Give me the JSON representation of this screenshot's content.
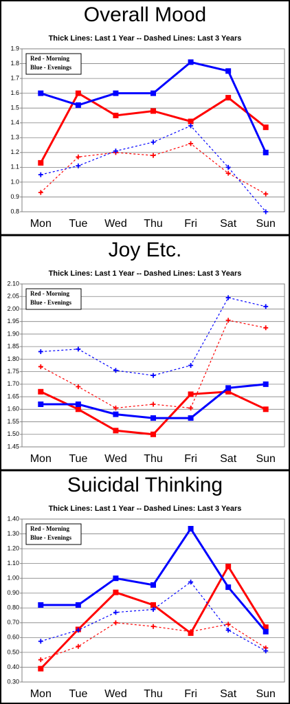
{
  "chart_data": [
    {
      "type": "line",
      "title": "Overall Mood",
      "subtitle": "Thick Lines: Last 1 Year -- Dashed Lines: Last 3 Years",
      "legend_text": [
        "Red - Morning",
        "Blue - Evenings"
      ],
      "categories": [
        "Mon",
        "Tue",
        "Wed",
        "Thu",
        "Fri",
        "Sat",
        "Sun"
      ],
      "ylim": [
        0.8,
        1.9
      ],
      "yticks": [
        0.8,
        0.9,
        {
          "value": 1,
          "label": "1.0"
        },
        1.1,
        1.2,
        1.3,
        1.4,
        1.5,
        1.6,
        1.7,
        1.8,
        1.9
      ],
      "grid": true,
      "series": [
        {
          "color": "#ff0000",
          "style": "solid",
          "values": [
            1.13,
            1.6,
            1.45,
            1.48,
            1.41,
            1.57,
            1.37
          ]
        },
        {
          "color": "#0000ff",
          "style": "solid",
          "values": [
            1.6,
            1.52,
            1.6,
            1.6,
            1.81,
            1.75,
            1.2
          ]
        },
        {
          "color": "#ff0000",
          "style": "dashed",
          "values": [
            0.93,
            1.17,
            1.2,
            1.18,
            1.26,
            1.06,
            0.92
          ]
        },
        {
          "color": "#0000ff",
          "style": "dashed",
          "values": [
            1.05,
            1.11,
            1.21,
            1.27,
            1.38,
            1.1,
            0.8
          ]
        }
      ]
    },
    {
      "type": "line",
      "title": "Joy Etc.",
      "subtitle": "Thick Lines: Last 1 Year -- Dashed Lines: Last 3 Years",
      "legend_text": [
        "Red - Morning",
        "Blue - Evenings"
      ],
      "categories": [
        "Mon",
        "Tue",
        "Wed",
        "Thu",
        "Fri",
        "Sat",
        "Sun"
      ],
      "ylim": [
        1.45,
        2.1
      ],
      "yticks": [
        1.45,
        {
          "value": 1.5,
          "label": "1.50"
        },
        1.55,
        {
          "value": 1.6,
          "label": "1.60"
        },
        1.65,
        {
          "value": 1.7,
          "label": "1.70"
        },
        1.75,
        {
          "value": 1.8,
          "label": "1.80"
        },
        1.85,
        {
          "value": 1.9,
          "label": "1.90"
        },
        1.95,
        {
          "value": 2,
          "label": "2.00"
        },
        2.05,
        {
          "value": 2.1,
          "label": "2.10"
        }
      ],
      "grid": true,
      "series": [
        {
          "color": "#ff0000",
          "style": "solid",
          "values": [
            1.67,
            1.6,
            1.515,
            1.5,
            1.66,
            1.67,
            1.6
          ]
        },
        {
          "color": "#0000ff",
          "style": "solid",
          "values": [
            1.62,
            1.62,
            1.58,
            1.565,
            1.565,
            1.685,
            1.7
          ]
        },
        {
          "color": "#ff0000",
          "style": "dashed",
          "values": [
            1.77,
            1.69,
            1.605,
            1.62,
            1.605,
            1.955,
            1.925
          ]
        },
        {
          "color": "#0000ff",
          "style": "dashed",
          "values": [
            1.83,
            1.84,
            1.755,
            1.735,
            1.775,
            2.045,
            2.01
          ]
        }
      ]
    },
    {
      "type": "line",
      "title": "Suicidal Thinking",
      "subtitle": "Thick Lines: Last 1 Year -- Dashed Lines: Last 3 Years",
      "legend_text": [
        "Red - Morning",
        "Blue - Evenings"
      ],
      "categories": [
        "Mon",
        "Tue",
        "Wed",
        "Thu",
        "Fri",
        "Sat",
        "Sun"
      ],
      "ylim": [
        0.3,
        1.4
      ],
      "yticks": [
        {
          "value": 0.3,
          "label": "0.30"
        },
        {
          "value": 0.4,
          "label": "0.40"
        },
        {
          "value": 0.5,
          "label": "0.50"
        },
        {
          "value": 0.6,
          "label": "0.60"
        },
        {
          "value": 0.7,
          "label": "0.70"
        },
        {
          "value": 0.8,
          "label": "0.80"
        },
        {
          "value": 0.9,
          "label": "0.90"
        },
        {
          "value": 1,
          "label": "1.00"
        },
        {
          "value": 1.1,
          "label": "1.10"
        },
        {
          "value": 1.2,
          "label": "1.20"
        },
        {
          "value": 1.3,
          "label": "1.30"
        },
        {
          "value": 1.4,
          "label": "1.40"
        }
      ],
      "grid": true,
      "series": [
        {
          "color": "#ff0000",
          "style": "solid",
          "values": [
            0.39,
            0.655,
            0.905,
            0.82,
            0.63,
            1.08,
            0.67
          ]
        },
        {
          "color": "#0000ff",
          "style": "solid",
          "values": [
            0.82,
            0.82,
            1.0,
            0.955,
            1.335,
            0.94,
            0.64
          ]
        },
        {
          "color": "#ff0000",
          "style": "dashed",
          "values": [
            0.45,
            0.54,
            0.7,
            0.675,
            0.64,
            0.69,
            0.53
          ]
        },
        {
          "color": "#0000ff",
          "style": "dashed",
          "values": [
            0.575,
            0.65,
            0.77,
            0.79,
            0.975,
            0.65,
            0.51
          ]
        }
      ]
    }
  ]
}
